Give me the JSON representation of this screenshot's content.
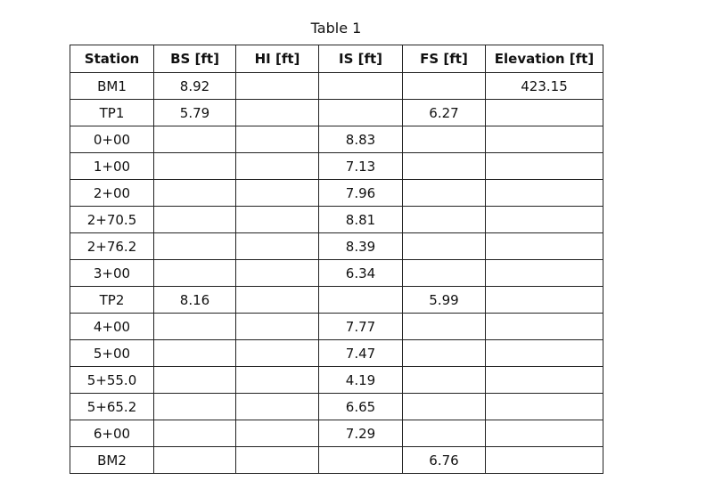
{
  "title": "Table 1",
  "table": {
    "header": [
      "Station",
      "BS [ft]",
      "HI [ft]",
      "IS [ft]",
      "FS [ft]",
      "Elevation [ft]"
    ],
    "rows": [
      [
        "BM1",
        8.92,
        null,
        null,
        null,
        423.15
      ],
      [
        "TP1",
        5.79,
        null,
        null,
        6.27,
        null
      ],
      [
        "0+00",
        null,
        null,
        8.83,
        null,
        null
      ],
      [
        "1+00",
        null,
        null,
        7.13,
        null,
        null
      ],
      [
        "2+00",
        null,
        null,
        7.96,
        null,
        null
      ],
      [
        "2+70.5",
        null,
        null,
        8.81,
        null,
        null
      ],
      [
        "2+76.2",
        null,
        null,
        8.39,
        null,
        null
      ],
      [
        "3+00",
        null,
        null,
        6.34,
        null,
        null
      ],
      [
        "TP2",
        8.16,
        null,
        null,
        5.99,
        null
      ],
      [
        "4+00",
        null,
        null,
        7.77,
        null,
        null
      ],
      [
        "5+00",
        null,
        null,
        7.47,
        null,
        null
      ],
      [
        "5+55.0",
        null,
        null,
        4.19,
        null,
        null
      ],
      [
        "5+65.2",
        null,
        null,
        6.65,
        null,
        null
      ],
      [
        "6+00",
        null,
        null,
        7.29,
        null,
        null
      ],
      [
        "BM2",
        null,
        null,
        null,
        6.76,
        null
      ]
    ]
  }
}
